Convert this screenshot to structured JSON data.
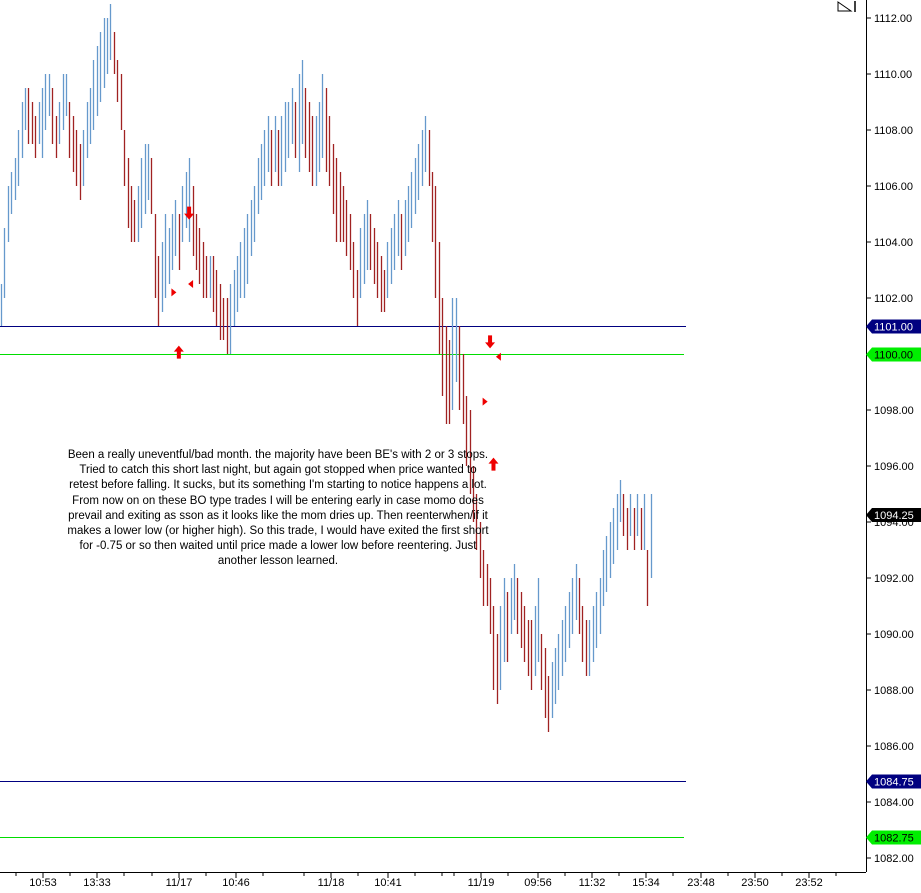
{
  "chart_data": {
    "type": "bar",
    "subtype": "OHLC price bars",
    "title": "",
    "xlabel": "",
    "ylabel": "",
    "ylim": [
      1081.5,
      1112.5
    ],
    "y_ticks": [
      1112,
      1110,
      1108,
      1106,
      1104,
      1102,
      1100,
      1098,
      1096,
      1094,
      1092,
      1090,
      1088,
      1086,
      1084,
      1082
    ],
    "y_tick_labels": [
      "1112.00",
      "1110.00",
      "1108.00",
      "1106.00",
      "1104.00",
      "1102.00",
      "1100.00",
      "1098.00",
      "1096.00",
      "1094.00",
      "1092.00",
      "1090.00",
      "1088.00",
      "1086.00",
      "1084.00",
      "1082.00"
    ],
    "x_tick_labels": [
      "10:53",
      "13:33",
      "11/17",
      "10:46",
      "11/18",
      "10:41",
      "11/19",
      "09:56",
      "11:32",
      "15:34",
      "23:48",
      "23:50",
      "23:52"
    ],
    "series": [
      {
        "x_start": 1,
        "x_step": 3.42,
        "up_color": "#6699cc",
        "down_color": "#a02222",
        "hl": [
          [
            1101,
            1102.5
          ],
          [
            1102,
            1104.5
          ],
          [
            1104,
            1106
          ],
          [
            1105,
            1106.5
          ],
          [
            1105.5,
            1107
          ],
          [
            1106,
            1108
          ],
          [
            1107,
            1109
          ],
          [
            1108,
            1109.5
          ],
          [
            1107.5,
            1109.5
          ],
          [
            1107.5,
            1109
          ],
          [
            1107,
            1108.5
          ],
          [
            1107.5,
            1109
          ],
          [
            1107,
            1109.5
          ],
          [
            1108,
            1110
          ],
          [
            1108.5,
            1110
          ],
          [
            1107.5,
            1109.5
          ],
          [
            1107,
            1108.5
          ],
          [
            1107.5,
            1109
          ],
          [
            1108,
            1110
          ],
          [
            1108.5,
            1110
          ],
          [
            1107,
            1109
          ],
          [
            1106.5,
            1108.5
          ],
          [
            1106,
            1108
          ],
          [
            1105.5,
            1107.5
          ],
          [
            1106,
            1108
          ],
          [
            1107,
            1109
          ],
          [
            1107.5,
            1109.5
          ],
          [
            1108,
            1110.5
          ],
          [
            1108.5,
            1111
          ],
          [
            1109,
            1111.5
          ],
          [
            1109.5,
            1112
          ],
          [
            1110,
            1112
          ],
          [
            1110.5,
            1112.5
          ],
          [
            1110,
            1111.5
          ],
          [
            1109,
            1110.5
          ],
          [
            1108,
            1110
          ],
          [
            1106,
            1108
          ],
          [
            1104.5,
            1107
          ],
          [
            1104,
            1106
          ],
          [
            1104,
            1105.5
          ],
          [
            1104,
            1106
          ],
          [
            1104.5,
            1107
          ],
          [
            1105,
            1107.5
          ],
          [
            1105.5,
            1107.5
          ],
          [
            1105,
            1107
          ],
          [
            1102,
            1105
          ],
          [
            1101,
            1103.5
          ],
          [
            1101.5,
            1104
          ],
          [
            1102,
            1105
          ],
          [
            1102.5,
            1104.5
          ],
          [
            1103,
            1105
          ],
          [
            1103.5,
            1105.5
          ],
          [
            1103,
            1105
          ],
          [
            1104,
            1106
          ],
          [
            1104.5,
            1106.5
          ],
          [
            1104,
            1107
          ],
          [
            1103.5,
            1106
          ],
          [
            1103,
            1105
          ],
          [
            1102.5,
            1104.5
          ],
          [
            1102,
            1104
          ],
          [
            1102,
            1103.5
          ],
          [
            1102,
            1103.5
          ],
          [
            1101.5,
            1103.5
          ],
          [
            1101,
            1103
          ],
          [
            1100.5,
            1102.5
          ],
          [
            1100.5,
            1102
          ],
          [
            1100,
            1102
          ],
          [
            1100,
            1102.5
          ],
          [
            1101,
            1103
          ],
          [
            1101.5,
            1103.5
          ],
          [
            1102,
            1104
          ],
          [
            1102,
            1104.5
          ],
          [
            1102.5,
            1105
          ],
          [
            1103.5,
            1105.5
          ],
          [
            1104,
            1106
          ],
          [
            1105,
            1107
          ],
          [
            1105.5,
            1107.5
          ],
          [
            1106,
            1108
          ],
          [
            1106.5,
            1108.5
          ],
          [
            1106,
            1108
          ],
          [
            1106.5,
            1108.5
          ],
          [
            1106,
            1108
          ],
          [
            1106,
            1108.5
          ],
          [
            1106.5,
            1109
          ],
          [
            1107,
            1109
          ],
          [
            1107.5,
            1109.5
          ],
          [
            1107,
            1109
          ],
          [
            1106.5,
            1110
          ],
          [
            1107.5,
            1110.5
          ],
          [
            1107,
            1109.5
          ],
          [
            1106.5,
            1109
          ],
          [
            1106,
            1108.5
          ],
          [
            1106,
            1108.5
          ],
          [
            1106.5,
            1109
          ],
          [
            1107,
            1110
          ],
          [
            1106.5,
            1109.5
          ],
          [
            1106,
            1108.5
          ],
          [
            1105,
            1107.5
          ],
          [
            1104,
            1107
          ],
          [
            1104,
            1106.5
          ],
          [
            1104,
            1106
          ],
          [
            1103.5,
            1105.5
          ],
          [
            1103,
            1105
          ],
          [
            1102,
            1104
          ],
          [
            1101,
            1103
          ],
          [
            1102,
            1104.5
          ],
          [
            1102.5,
            1105
          ],
          [
            1103,
            1105.5
          ],
          [
            1103,
            1105
          ],
          [
            1102.5,
            1104.5
          ],
          [
            1102,
            1104
          ],
          [
            1101.5,
            1103.5
          ],
          [
            1101.5,
            1103
          ],
          [
            1102,
            1104
          ],
          [
            1102.5,
            1104.5
          ],
          [
            1103,
            1105
          ],
          [
            1103.5,
            1105.5
          ],
          [
            1103,
            1105
          ],
          [
            1103.5,
            1105.5
          ],
          [
            1104,
            1106
          ],
          [
            1104.5,
            1106.5
          ],
          [
            1105,
            1107
          ],
          [
            1105.5,
            1107.5
          ],
          [
            1106,
            1108
          ],
          [
            1106.5,
            1108.5
          ],
          [
            1106,
            1108
          ],
          [
            1104,
            1106.5
          ],
          [
            1102,
            1106
          ],
          [
            1100,
            1104
          ],
          [
            1098.5,
            1102
          ],
          [
            1097.5,
            1101
          ],
          [
            1097.5,
            1100.5
          ],
          [
            1098,
            1102
          ],
          [
            1099,
            1102
          ],
          [
            1098,
            1101
          ],
          [
            1097.5,
            1100
          ],
          [
            1096,
            1098.5
          ],
          [
            1095,
            1098
          ],
          [
            1094,
            1096
          ],
          [
            1093,
            1095
          ],
          [
            1092,
            1094
          ],
          [
            1091,
            1093
          ],
          [
            1091,
            1092.5
          ],
          [
            1090,
            1092
          ],
          [
            1088,
            1091
          ],
          [
            1087.5,
            1090
          ],
          [
            1088,
            1091
          ],
          [
            1089,
            1092
          ],
          [
            1089,
            1091.5
          ],
          [
            1090,
            1092
          ],
          [
            1090.5,
            1092.5
          ],
          [
            1090,
            1092
          ],
          [
            1089.5,
            1091.5
          ],
          [
            1089,
            1091
          ],
          [
            1088.5,
            1090.5
          ],
          [
            1088,
            1090.5
          ],
          [
            1088.5,
            1091
          ],
          [
            1089,
            1092
          ],
          [
            1088,
            1090
          ],
          [
            1087,
            1089.5
          ],
          [
            1086.5,
            1088.5
          ],
          [
            1087,
            1089
          ],
          [
            1087.5,
            1089.5
          ],
          [
            1088,
            1090
          ],
          [
            1088.5,
            1090.5
          ],
          [
            1089,
            1091
          ],
          [
            1089.5,
            1091.5
          ],
          [
            1090,
            1092
          ],
          [
            1090.5,
            1092.5
          ],
          [
            1090,
            1092
          ],
          [
            1089,
            1091
          ],
          [
            1088.5,
            1090.5
          ],
          [
            1088.5,
            1090.5
          ],
          [
            1089,
            1091
          ],
          [
            1089.5,
            1091.5
          ],
          [
            1090,
            1092
          ],
          [
            1091,
            1093
          ],
          [
            1091.5,
            1093.5
          ],
          [
            1092,
            1094
          ],
          [
            1092.5,
            1094.5
          ],
          [
            1093,
            1095
          ],
          [
            1094,
            1095.5
          ],
          [
            1093.5,
            1095
          ],
          [
            1093,
            1094.5
          ],
          [
            1093.5,
            1095
          ],
          [
            1093,
            1094.5
          ],
          [
            1093.5,
            1095
          ],
          [
            1093,
            1094.5
          ],
          [
            1093,
            1095
          ],
          [
            1091,
            1093
          ],
          [
            1092,
            1095
          ]
        ]
      }
    ],
    "horizontal_lines": [
      {
        "value": 1101.0,
        "label": "1101.00",
        "color": "#000080"
      },
      {
        "value": 1100.0,
        "label": "1100.00",
        "color": "#00dd00"
      },
      {
        "value": 1084.75,
        "label": "1084.75",
        "color": "#000080"
      },
      {
        "value": 1082.75,
        "label": "1082.75",
        "color": "#00dd00"
      }
    ],
    "last_price": {
      "value": 1094.25,
      "label": "1094.25"
    },
    "markers": [
      {
        "type": "up-arrow",
        "x_index": 52,
        "y": 1100.3
      },
      {
        "type": "down-arrow",
        "x_index": 55,
        "y": 1104.8
      },
      {
        "type": "right-tri",
        "x_index": 51,
        "y": 1102.2
      },
      {
        "type": "left-tri",
        "x_index": 55,
        "y": 1102.5
      },
      {
        "type": "down-arrow",
        "x_index": 143,
        "y": 1100.2
      },
      {
        "type": "left-tri",
        "x_index": 145,
        "y": 1099.9
      },
      {
        "type": "right-tri",
        "x_index": 142,
        "y": 1098.3
      },
      {
        "type": "up-arrow",
        "x_index": 144,
        "y": 1096.3
      }
    ],
    "grid": false,
    "legend": "none"
  },
  "annotation_text": "Been a really uneventful/bad month. the majority have been BE's with 2 or 3 stops. Tried to catch this short last night, but again got stopped when price wanted to retest before falling. It sucks, but its something I'm starting to notice happens a lot. From now on on these BO type trades I will be entering early in case momo does prevail and exiting as sson as it looks like the mom dries up. Then reenterwhen/if it makes a lower low (or higher high). So this trade, I would have exited the first short for -0.75 or so then waited until price made a lower low before reentering. Just another lesson learned.",
  "colors": {
    "axis": "#000000",
    "up_bar": "#6699cc",
    "down_bar": "#a02222",
    "arrow": "#ee0000"
  }
}
